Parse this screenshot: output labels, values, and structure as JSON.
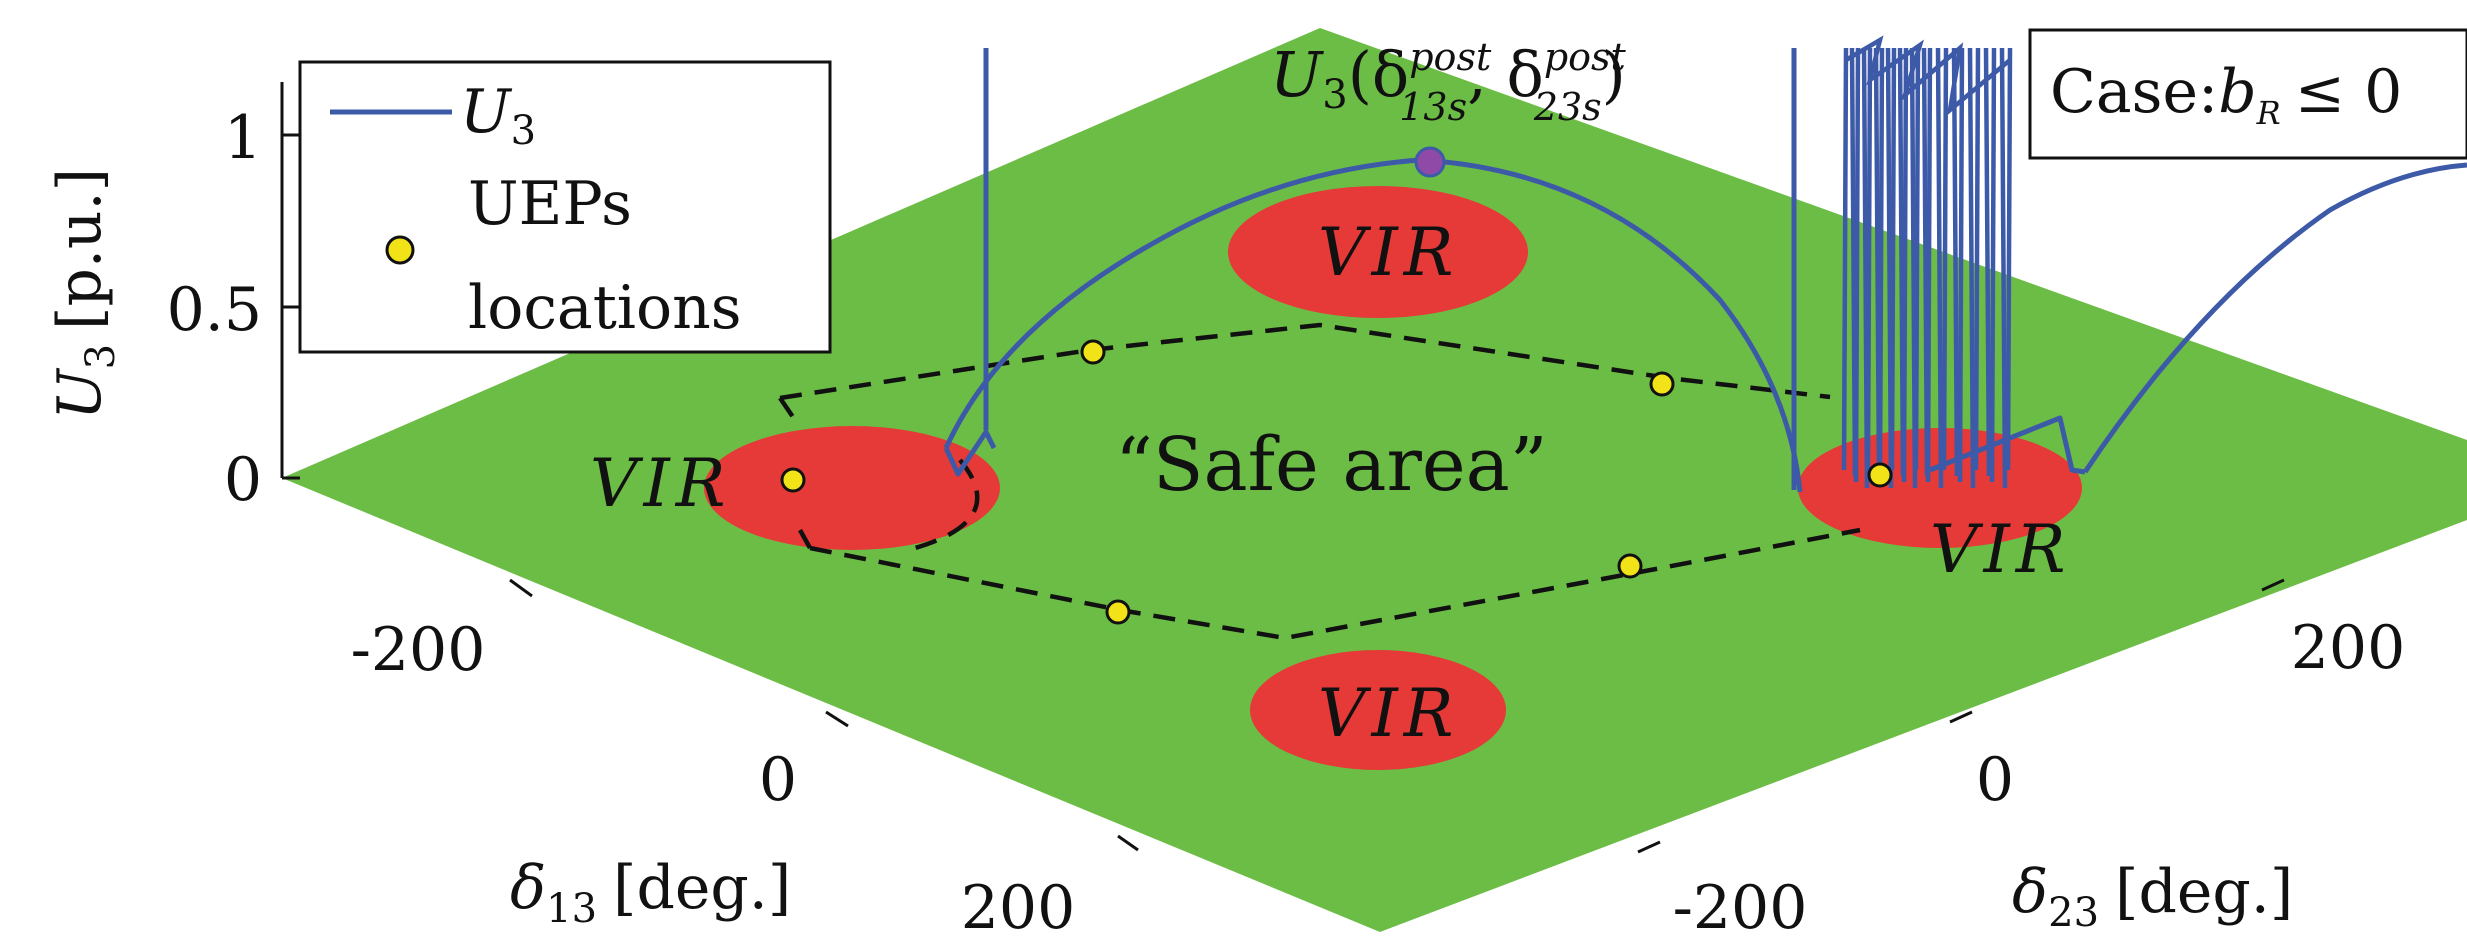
{
  "chart_data": {
    "type": "surface3d",
    "title": "",
    "zlabel": {
      "main": "U",
      "sub": "3",
      "unit": "[p.u.]"
    },
    "xlabel": {
      "main": "δ",
      "sub": "13",
      "unit": "[deg.]"
    },
    "ylabel": {
      "main": "δ",
      "sub": "23",
      "unit": "[deg.]"
    },
    "zticks": [
      "1",
      "0.5",
      "0"
    ],
    "xticks": [
      "-200",
      "0",
      "200"
    ],
    "yticks": [
      "200",
      "0",
      "-200"
    ],
    "zlim": [
      0,
      1.25
    ],
    "surface": {
      "z": 0,
      "color": "#6cbd45"
    },
    "legend": {
      "position": "top-left",
      "entries": [
        {
          "label_main": "U",
          "label_sub": "3",
          "kind": "line",
          "color": "#3d5aa8"
        },
        {
          "label_line1": "UEPs",
          "label_line2": "locations",
          "kind": "marker",
          "color": "#f2e318"
        }
      ]
    },
    "case_box": {
      "prefix": "Case:",
      "var": "b",
      "sub": "R",
      "rel": "≤ 0"
    },
    "annotations": {
      "peak_label": {
        "main": "U",
        "sub": "3",
        "open": "(δ",
        "sup1": "post",
        "sub1": "13s",
        "sep": ", δ",
        "sup2": "post",
        "sub2": "23s",
        "close": ")"
      },
      "safe_area": "“Safe area”",
      "vir_label": "VIR"
    },
    "vir_regions": [
      {
        "name": "vir-left"
      },
      {
        "name": "vir-top"
      },
      {
        "name": "vir-right"
      },
      {
        "name": "vir-bottom"
      }
    ],
    "ueps": [
      {
        "name": "uep-left"
      },
      {
        "name": "uep-upper-left"
      },
      {
        "name": "uep-upper-right"
      },
      {
        "name": "uep-right"
      },
      {
        "name": "uep-lower-right"
      },
      {
        "name": "uep-lower-left"
      }
    ],
    "series": [
      {
        "name": "U3",
        "color": "#3d5aa8",
        "peak_value": 0.95
      }
    ],
    "colors": {
      "surface": "#6cbd45",
      "vir": "#ee2f36",
      "line": "#3d5aa8",
      "uep": "#f2e318",
      "peak_marker": "#8e4aa6"
    }
  }
}
